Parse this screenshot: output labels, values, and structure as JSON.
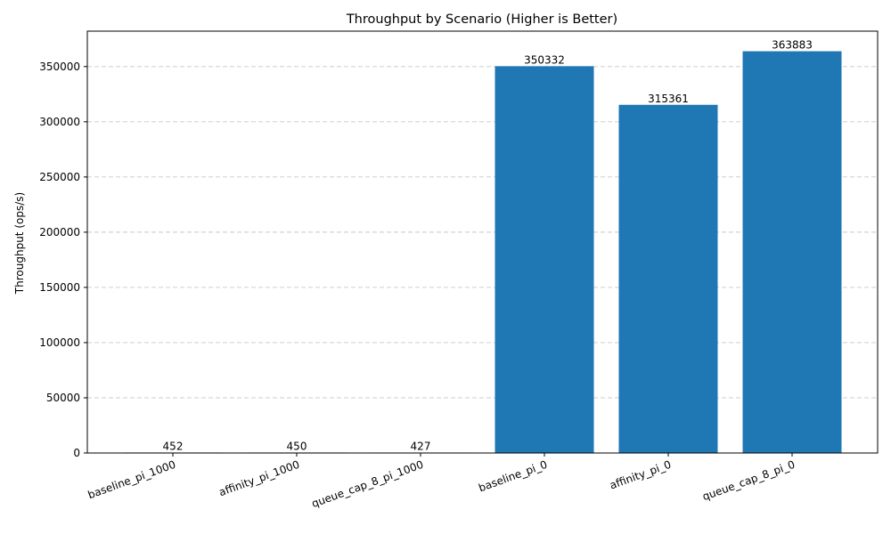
{
  "chart_data": {
    "type": "bar",
    "title": "Throughput by Scenario (Higher is Better)",
    "xlabel": "",
    "ylabel": "Throughput (ops/s)",
    "categories": [
      "baseline_pi_1000",
      "affinity_pi_1000",
      "queue_cap_8_pi_1000",
      "baseline_pi_0",
      "affinity_pi_0",
      "queue_cap_8_pi_0"
    ],
    "values": [
      452,
      450,
      427,
      350332,
      315361,
      363883
    ],
    "data_labels": [
      "452",
      "450",
      "427",
      "350332",
      "315361",
      "363883"
    ],
    "ylim": [
      0,
      382077
    ],
    "yticks": [
      0,
      50000,
      100000,
      150000,
      200000,
      250000,
      300000,
      350000
    ],
    "ytick_labels": [
      "0",
      "50000",
      "100000",
      "150000",
      "200000",
      "250000",
      "300000",
      "350000"
    ],
    "grid": "y-dashed",
    "bar_color": "#1f77b4"
  }
}
